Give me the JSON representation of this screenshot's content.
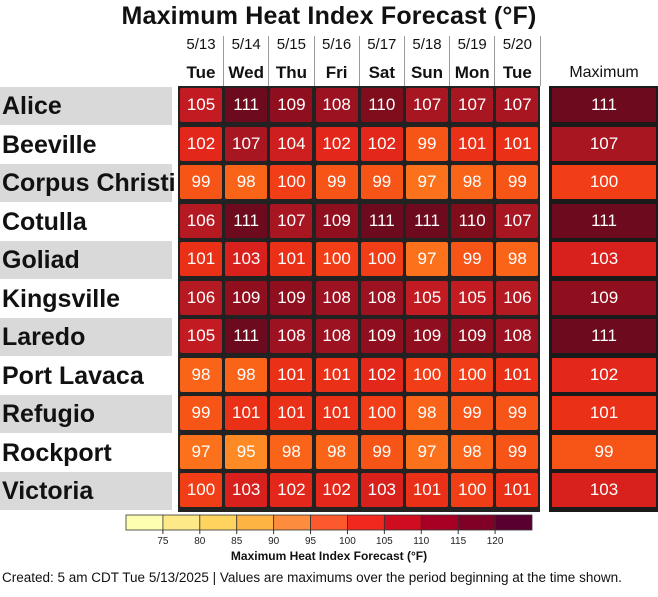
{
  "chart_data": {
    "type": "heatmap",
    "title": "Maximum Heat Index Forecast (°F)",
    "dates": [
      "5/13",
      "5/14",
      "5/15",
      "5/16",
      "5/17",
      "5/18",
      "5/19",
      "5/20"
    ],
    "days": [
      "Tue",
      "Wed",
      "Thu",
      "Fri",
      "Sat",
      "Sun",
      "Mon",
      "Tue"
    ],
    "max_header": "Maximum",
    "rows": [
      {
        "city": "Alice",
        "values": [
          105,
          111,
          109,
          108,
          110,
          107,
          107,
          107
        ],
        "max": 111
      },
      {
        "city": "Beeville",
        "values": [
          102,
          107,
          104,
          102,
          102,
          99,
          101,
          101
        ],
        "max": 107
      },
      {
        "city": "Corpus Christi",
        "values": [
          99,
          98,
          100,
          99,
          99,
          97,
          98,
          99
        ],
        "max": 100
      },
      {
        "city": "Cotulla",
        "values": [
          106,
          111,
          107,
          109,
          111,
          111,
          110,
          107
        ],
        "max": 111
      },
      {
        "city": "Goliad",
        "values": [
          101,
          103,
          101,
          100,
          100,
          97,
          99,
          98
        ],
        "max": 103
      },
      {
        "city": "Kingsville",
        "values": [
          106,
          109,
          109,
          108,
          108,
          105,
          105,
          106
        ],
        "max": 109
      },
      {
        "city": "Laredo",
        "values": [
          105,
          111,
          108,
          108,
          109,
          109,
          109,
          108
        ],
        "max": 111
      },
      {
        "city": "Port Lavaca",
        "values": [
          98,
          98,
          101,
          101,
          102,
          100,
          100,
          101
        ],
        "max": 102
      },
      {
        "city": "Refugio",
        "values": [
          99,
          101,
          101,
          101,
          100,
          98,
          99,
          99
        ],
        "max": 101
      },
      {
        "city": "Rockport",
        "values": [
          97,
          95,
          98,
          98,
          99,
          97,
          98,
          99
        ],
        "max": 99
      },
      {
        "city": "Victoria",
        "values": [
          100,
          103,
          102,
          102,
          103,
          101,
          100,
          101
        ],
        "max": 103
      }
    ],
    "colorbar": {
      "label": "Maximum Heat Index Forecast (°F)",
      "ticks": [
        75,
        80,
        85,
        90,
        95,
        100,
        105,
        110,
        115,
        120
      ],
      "colors": [
        "#ffffb2",
        "#fde988",
        "#fed35e",
        "#feb443",
        "#fd8d3c",
        "#fc5a2c",
        "#f0281e",
        "#d00d20",
        "#a80025",
        "#800026",
        "#5a0030"
      ]
    }
  },
  "footer": "Created: 5 am CDT Tue 5/13/2025  |  Values are maximums over the period beginning at the time shown."
}
